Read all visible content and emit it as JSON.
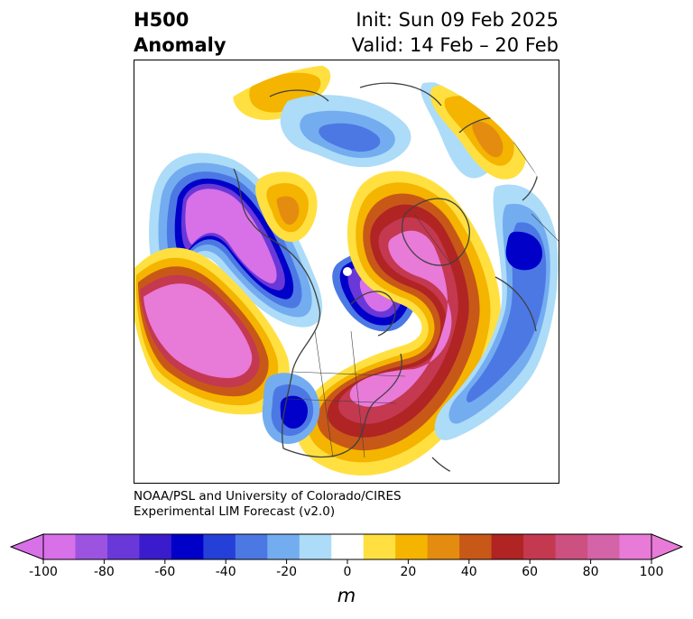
{
  "title": {
    "left_line1": "H500",
    "left_line2": "Anomaly",
    "right_line1": "Init: Sun 09 Feb 2025",
    "right_line2": "Valid: 14 Feb – 20 Feb"
  },
  "credit": {
    "line1": "NOAA/PSL and University of Colorado/CIRES",
    "line2": "Experimental LIM Forecast (v2.0)"
  },
  "colorbar": {
    "unit": "m",
    "ticks": [
      "-100",
      "-80",
      "-60",
      "-40",
      "-20",
      "0",
      "20",
      "40",
      "60",
      "80",
      "100"
    ],
    "colors": [
      "#d870e8",
      "#9c54e0",
      "#6a38d8",
      "#3a1ccc",
      "#0000c8",
      "#2440d8",
      "#4c78e4",
      "#74acf0",
      "#acdcf8",
      "#ffffff",
      "#ffe040",
      "#f4b400",
      "#e48c10",
      "#c85818",
      "#b02424",
      "#c43850",
      "#cc5080",
      "#d464a8",
      "#e87ad8"
    ],
    "min_color": "#d870e8",
    "max_color": "#e87ad8"
  },
  "map": {
    "projection": "north-polar-stereographic",
    "field": "500 hPa geopotential height anomaly",
    "features": [
      {
        "label": "negative-anomaly-north-pacific",
        "sign": "negative",
        "peak_m": -100
      },
      {
        "label": "negative-anomaly-greenland",
        "sign": "negative",
        "peak_m": -100
      },
      {
        "label": "negative-anomaly-southwest-us",
        "sign": "negative",
        "peak_m": -60
      },
      {
        "label": "negative-anomaly-arctic",
        "sign": "negative",
        "peak_m": -40
      },
      {
        "label": "positive-anomaly-eastern-pacific",
        "sign": "positive",
        "peak_m": 100
      },
      {
        "label": "positive-anomaly-eastern-north-america",
        "sign": "positive",
        "peak_m": 100
      },
      {
        "label": "positive-anomaly-scandinavia",
        "sign": "positive",
        "peak_m": 100
      },
      {
        "label": "positive-anomaly-siberia",
        "sign": "positive",
        "peak_m": 40
      },
      {
        "label": "positive-anomaly-alaska-west",
        "sign": "positive",
        "peak_m": 40
      }
    ]
  }
}
